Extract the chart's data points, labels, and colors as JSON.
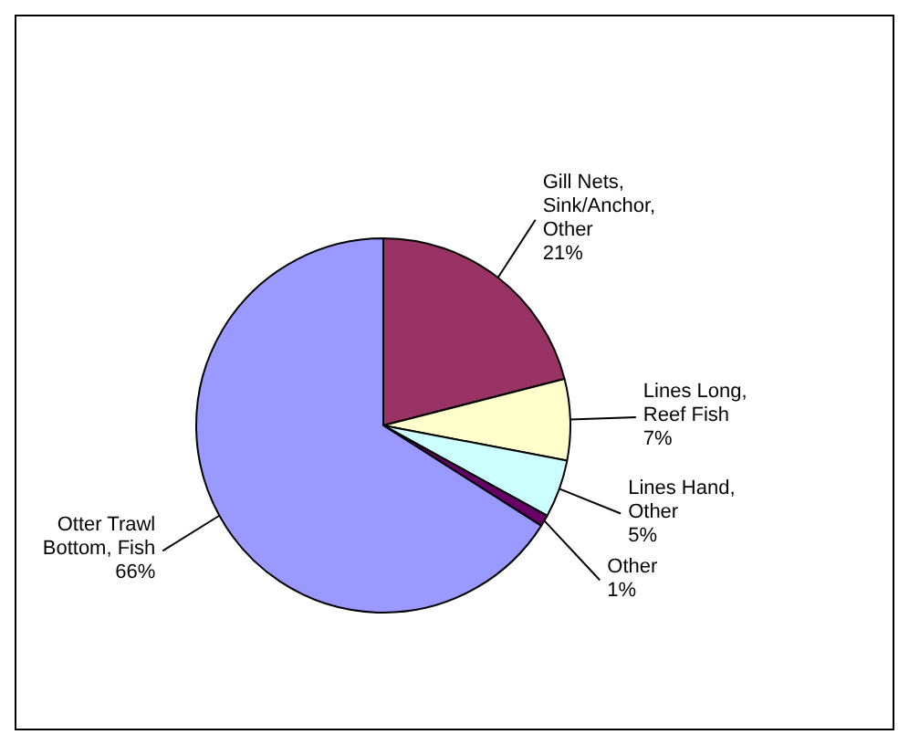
{
  "chart_data": {
    "type": "pie",
    "categories": [
      "Gill Nets, Sink/Anchor, Other",
      "Lines Long, Reef Fish",
      "Lines Hand, Other",
      "Other",
      "Otter Trawl Bottom, Fish"
    ],
    "values": [
      21,
      7,
      5,
      1,
      66
    ],
    "value_labels": [
      "21%",
      "7%",
      "5%",
      "1%",
      "66%"
    ],
    "colors": [
      "#993366",
      "#ffffcc",
      "#ccffff",
      "#660066",
      "#9999ff"
    ],
    "legend": false
  }
}
